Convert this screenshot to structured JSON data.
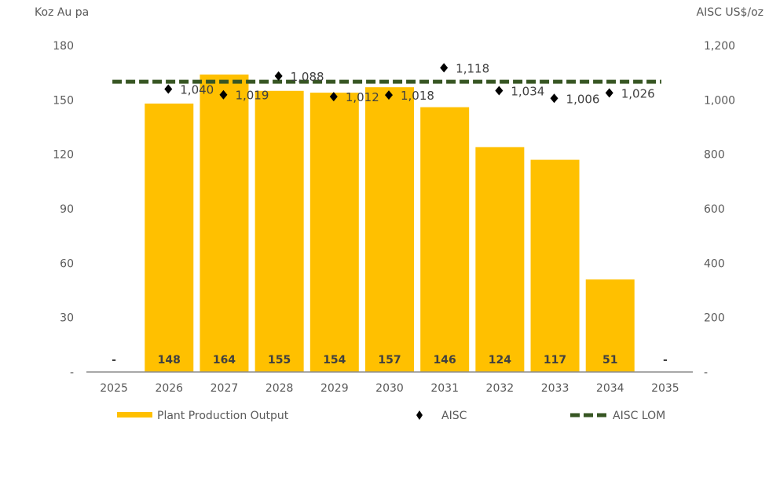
{
  "chart_data": {
    "type": "bar",
    "left_axis_title": "Koz Au pa",
    "right_axis_title": "AISC US$/oz",
    "categories": [
      "2025",
      "2026",
      "2027",
      "2028",
      "2029",
      "2030",
      "2031",
      "2032",
      "2033",
      "2034",
      "2035"
    ],
    "left_ylim": [
      0,
      180
    ],
    "left_ticks": [
      0,
      30,
      60,
      90,
      120,
      150,
      180
    ],
    "left_tick_labels": [
      "-",
      "30",
      "60",
      "90",
      "120",
      "150",
      "180"
    ],
    "right_ylim": [
      0,
      1200
    ],
    "right_ticks": [
      0,
      200,
      400,
      600,
      800,
      1000,
      1200
    ],
    "right_tick_labels": [
      "-",
      "200",
      "400",
      "600",
      "800",
      "1,000",
      "1,200"
    ],
    "series": [
      {
        "name": "Plant Production Output",
        "type": "bar",
        "axis": "left",
        "color": "#FFC000",
        "values": [
          null,
          148,
          164,
          155,
          154,
          157,
          146,
          124,
          117,
          51,
          null
        ],
        "labels": [
          "-",
          "148",
          "164",
          "155",
          "154",
          "157",
          "146",
          "124",
          "117",
          "51",
          "-"
        ]
      },
      {
        "name": "AISC",
        "type": "scatter",
        "axis": "right",
        "color": "#000000",
        "values": [
          null,
          1040,
          1019,
          1088,
          1012,
          1018,
          1118,
          1034,
          1006,
          1026,
          null
        ],
        "labels": [
          null,
          "1,040",
          "1,019",
          "1,088",
          "1,012",
          "1,018",
          "1,118",
          "1,034",
          "1,006",
          "1,026",
          null
        ]
      },
      {
        "name": "AISC LOM",
        "type": "line",
        "axis": "right",
        "color": "#375623",
        "value": 1067
      }
    ],
    "legend_position": "bottom",
    "grid": false
  }
}
